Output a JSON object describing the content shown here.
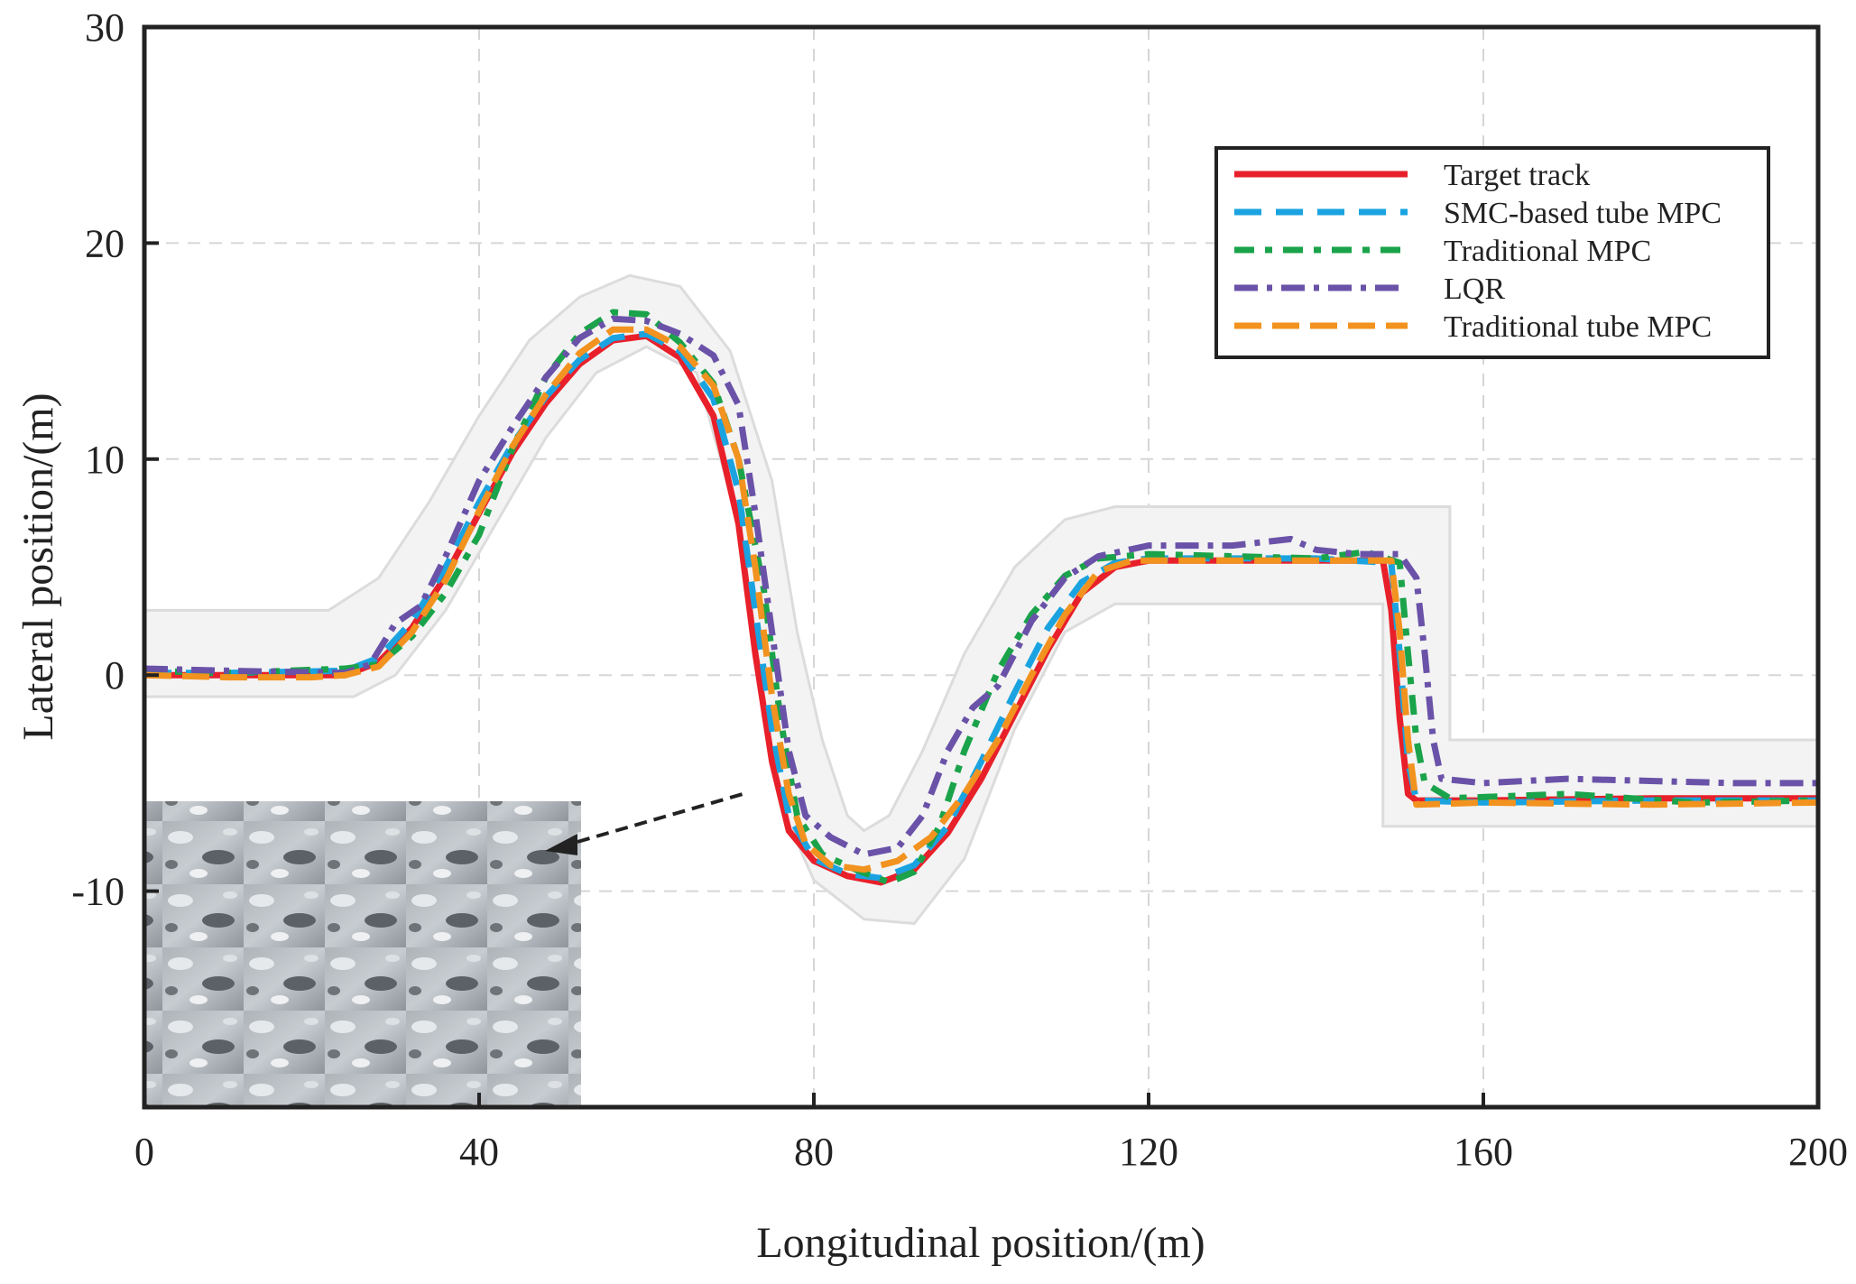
{
  "chart_data": {
    "type": "line",
    "title": "",
    "xlabel": "Longitudinal position/(m)",
    "ylabel": "Lateral position/(m)",
    "xlim": [
      0,
      200
    ],
    "ylim": [
      -20,
      30
    ],
    "xticks": [
      0,
      40,
      80,
      120,
      160,
      200
    ],
    "yticks": [
      -10,
      0,
      10,
      20,
      30
    ],
    "grid": true,
    "legend_position": "top-right",
    "inset": "photo of icy, snow-covered road surface (bottom-left), pointer line to trajectory near x=78",
    "road_boundaries": {
      "upper": [
        [
          0,
          3
        ],
        [
          22,
          3
        ],
        [
          28,
          4.5
        ],
        [
          34,
          8
        ],
        [
          40,
          12
        ],
        [
          46,
          15.5
        ],
        [
          52,
          17.5
        ],
        [
          58,
          18.5
        ],
        [
          64,
          18
        ],
        [
          70,
          15
        ],
        [
          75,
          9
        ],
        [
          78,
          2
        ],
        [
          81,
          -3
        ],
        [
          84,
          -6.5
        ],
        [
          86,
          -7.2
        ],
        [
          89,
          -6.5
        ],
        [
          93,
          -3.5
        ],
        [
          98,
          1
        ],
        [
          104,
          5
        ],
        [
          110,
          7.2
        ],
        [
          116,
          7.8
        ],
        [
          156,
          7.8
        ],
        [
          156,
          -3
        ],
        [
          200,
          -3
        ]
      ],
      "lower": [
        [
          0,
          -1
        ],
        [
          25,
          -1
        ],
        [
          30,
          0
        ],
        [
          36,
          3
        ],
        [
          42,
          7
        ],
        [
          48,
          11
        ],
        [
          54,
          14
        ],
        [
          60,
          15.2
        ],
        [
          66,
          14
        ],
        [
          71,
          7
        ],
        [
          74,
          -1
        ],
        [
          76,
          -6
        ],
        [
          80,
          -9.5
        ],
        [
          86,
          -11.3
        ],
        [
          92,
          -11.5
        ],
        [
          98,
          -8.5
        ],
        [
          104,
          -2.5
        ],
        [
          110,
          2
        ],
        [
          116,
          3.3
        ],
        [
          148,
          3.3
        ],
        [
          148,
          -7
        ],
        [
          200,
          -7
        ]
      ]
    },
    "series": [
      {
        "name": "Target track",
        "color": "#e8202a",
        "dash": "solid",
        "points": [
          [
            0,
            0
          ],
          [
            10,
            0
          ],
          [
            24,
            0
          ],
          [
            28,
            0.6
          ],
          [
            32,
            2.2
          ],
          [
            36,
            4.6
          ],
          [
            40,
            7.5
          ],
          [
            44,
            10.3
          ],
          [
            48,
            12.6
          ],
          [
            52,
            14.4
          ],
          [
            56,
            15.5
          ],
          [
            60,
            15.7
          ],
          [
            64,
            14.7
          ],
          [
            68,
            12
          ],
          [
            71,
            7
          ],
          [
            73,
            1
          ],
          [
            75,
            -4
          ],
          [
            77,
            -7.2
          ],
          [
            80,
            -8.6
          ],
          [
            84,
            -9.3
          ],
          [
            88,
            -9.6
          ],
          [
            92,
            -9
          ],
          [
            96,
            -7.3
          ],
          [
            100,
            -4.8
          ],
          [
            104,
            -1.8
          ],
          [
            108,
            1.2
          ],
          [
            112,
            3.8
          ],
          [
            116,
            5
          ],
          [
            120,
            5.3
          ],
          [
            130,
            5.3
          ],
          [
            140,
            5.3
          ],
          [
            148,
            5.3
          ],
          [
            149,
            3
          ],
          [
            150,
            -2
          ],
          [
            151,
            -5.5
          ],
          [
            152,
            -5.8
          ],
          [
            160,
            -5.8
          ],
          [
            180,
            -5.7
          ],
          [
            200,
            -5.7
          ]
        ]
      },
      {
        "name": "SMC-based tube MPC",
        "color": "#1aa3e0",
        "dash": "30,16",
        "points": [
          [
            0,
            0.1
          ],
          [
            10,
            0.1
          ],
          [
            24,
            0.2
          ],
          [
            28,
            0.8
          ],
          [
            32,
            2.5
          ],
          [
            36,
            5
          ],
          [
            40,
            8
          ],
          [
            44,
            10.7
          ],
          [
            48,
            12.9
          ],
          [
            52,
            14.6
          ],
          [
            56,
            15.6
          ],
          [
            60,
            15.8
          ],
          [
            64,
            15
          ],
          [
            68,
            12.8
          ],
          [
            71,
            8.5
          ],
          [
            73,
            3
          ],
          [
            75,
            -2.5
          ],
          [
            77,
            -6.5
          ],
          [
            80,
            -8.5
          ],
          [
            84,
            -9.2
          ],
          [
            88,
            -9.4
          ],
          [
            92,
            -8.8
          ],
          [
            96,
            -7
          ],
          [
            100,
            -4
          ],
          [
            104,
            -0.8
          ],
          [
            108,
            2.2
          ],
          [
            112,
            4.3
          ],
          [
            116,
            5.2
          ],
          [
            120,
            5.4
          ],
          [
            130,
            5.4
          ],
          [
            140,
            5.4
          ],
          [
            149,
            5.2
          ],
          [
            150,
            1
          ],
          [
            151,
            -4
          ],
          [
            152,
            -5.8
          ],
          [
            160,
            -5.9
          ],
          [
            180,
            -5.8
          ],
          [
            200,
            -5.8
          ]
        ]
      },
      {
        "name": "Traditional MPC",
        "color": "#1aa34a",
        "dash": "22,12,8,12",
        "points": [
          [
            0,
            0.2
          ],
          [
            10,
            0.1
          ],
          [
            24,
            0.3
          ],
          [
            28,
            0.5
          ],
          [
            32,
            1.8
          ],
          [
            36,
            3.8
          ],
          [
            40,
            6.5
          ],
          [
            44,
            10.5
          ],
          [
            48,
            13.8
          ],
          [
            52,
            15.8
          ],
          [
            56,
            16.8
          ],
          [
            60,
            16.7
          ],
          [
            64,
            15.4
          ],
          [
            68,
            13.5
          ],
          [
            71,
            10
          ],
          [
            74,
            4
          ],
          [
            76,
            -2
          ],
          [
            78,
            -6.5
          ],
          [
            81,
            -8.3
          ],
          [
            85,
            -9
          ],
          [
            89,
            -9.6
          ],
          [
            92,
            -9.1
          ],
          [
            95,
            -7
          ],
          [
            98,
            -3.5
          ],
          [
            102,
            0.2
          ],
          [
            106,
            2.8
          ],
          [
            110,
            4.6
          ],
          [
            114,
            5.4
          ],
          [
            120,
            5.6
          ],
          [
            130,
            5.5
          ],
          [
            140,
            5.4
          ],
          [
            146,
            5.7
          ],
          [
            150,
            5.2
          ],
          [
            151,
            1
          ],
          [
            152,
            -3
          ],
          [
            153,
            -5
          ],
          [
            156,
            -5.7
          ],
          [
            170,
            -5.5
          ],
          [
            185,
            -5.9
          ],
          [
            200,
            -5.8
          ]
        ]
      },
      {
        "name": "LQR",
        "color": "#6a52a8",
        "dash": "26,10,6,10",
        "points": [
          [
            0,
            0.3
          ],
          [
            10,
            0.2
          ],
          [
            24,
            0.1
          ],
          [
            27,
            0.5
          ],
          [
            30,
            2.4
          ],
          [
            33,
            3.2
          ],
          [
            36,
            5.5
          ],
          [
            40,
            9
          ],
          [
            44,
            11.5
          ],
          [
            48,
            13.8
          ],
          [
            52,
            15.6
          ],
          [
            56,
            16.5
          ],
          [
            60,
            16.4
          ],
          [
            64,
            15.8
          ],
          [
            68,
            14.8
          ],
          [
            71,
            12.5
          ],
          [
            73,
            7.5
          ],
          [
            75,
            2
          ],
          [
            77,
            -3.5
          ],
          [
            79,
            -6.5
          ],
          [
            82,
            -7.5
          ],
          [
            86,
            -8.3
          ],
          [
            90,
            -8
          ],
          [
            93,
            -6.5
          ],
          [
            96,
            -3.5
          ],
          [
            99,
            -1.5
          ],
          [
            102,
            -0.5
          ],
          [
            106,
            2.5
          ],
          [
            110,
            4.5
          ],
          [
            114,
            5.5
          ],
          [
            120,
            6
          ],
          [
            130,
            6
          ],
          [
            137,
            6.3
          ],
          [
            140,
            5.8
          ],
          [
            145,
            5.6
          ],
          [
            150,
            5.6
          ],
          [
            152,
            4.5
          ],
          [
            153,
            1
          ],
          [
            154,
            -3
          ],
          [
            155,
            -4.8
          ],
          [
            160,
            -5
          ],
          [
            170,
            -4.8
          ],
          [
            180,
            -4.9
          ],
          [
            190,
            -5
          ],
          [
            200,
            -5
          ]
        ]
      },
      {
        "name": "Traditional tube MPC",
        "color": "#f2921f",
        "dash": "30,12",
        "points": [
          [
            0,
            0
          ],
          [
            10,
            -0.1
          ],
          [
            20,
            -0.1
          ],
          [
            24,
            0
          ],
          [
            28,
            0.4
          ],
          [
            32,
            2
          ],
          [
            36,
            4.4
          ],
          [
            40,
            7.6
          ],
          [
            44,
            10.6
          ],
          [
            48,
            13
          ],
          [
            52,
            14.9
          ],
          [
            56,
            16
          ],
          [
            60,
            16
          ],
          [
            64,
            15.2
          ],
          [
            68,
            13.4
          ],
          [
            71,
            10
          ],
          [
            73,
            5
          ],
          [
            75,
            -1
          ],
          [
            77,
            -5.5
          ],
          [
            79,
            -7.8
          ],
          [
            82,
            -8.8
          ],
          [
            86,
            -9
          ],
          [
            90,
            -8.6
          ],
          [
            94,
            -7.5
          ],
          [
            98,
            -5.5
          ],
          [
            102,
            -3
          ],
          [
            106,
            0
          ],
          [
            110,
            2.8
          ],
          [
            114,
            4.8
          ],
          [
            118,
            5.3
          ],
          [
            130,
            5.3
          ],
          [
            140,
            5.3
          ],
          [
            149,
            5.3
          ],
          [
            150,
            2
          ],
          [
            151,
            -3
          ],
          [
            152,
            -6
          ],
          [
            160,
            -5.9
          ],
          [
            180,
            -6
          ],
          [
            200,
            -5.9
          ]
        ]
      }
    ]
  }
}
